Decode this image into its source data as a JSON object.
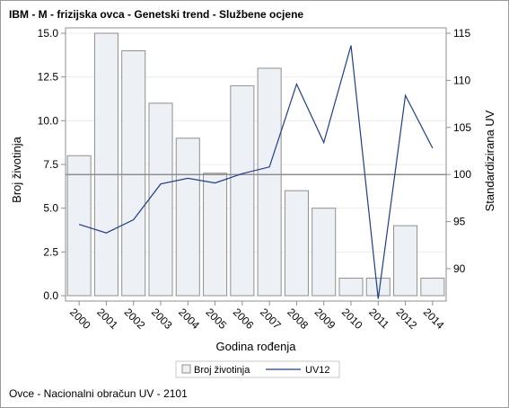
{
  "title": "IBM - M - frizijska ovca - Genetski trend - Službene ocjene",
  "footnote": "Ovce - Nacionalni obračun UV - 2101",
  "colors": {
    "bar_fill": "#edf0f5",
    "bar_stroke": "#8f8f8f",
    "line": "#1f3d8c",
    "reference_line": "#8f8f8f",
    "axis": "#8f8f8f",
    "grid": "#ececec"
  },
  "chart_data": {
    "type": "bar",
    "xlabel": "Godina rođenja",
    "ylabel": "Broj životinja",
    "y2label": "Standardizirana UV",
    "categories": [
      "2000",
      "2001",
      "2002",
      "2003",
      "2004",
      "2005",
      "2006",
      "2007",
      "2008",
      "2009",
      "2010",
      "2011",
      "2012",
      "2014"
    ],
    "ylim": [
      0,
      15
    ],
    "yticks": [
      "0.0",
      "2.5",
      "5.0",
      "7.5",
      "10.0",
      "12.5",
      "15.0"
    ],
    "y2lim": [
      87,
      115
    ],
    "y2ticks": [
      "90",
      "95",
      "100",
      "105",
      "110",
      "115"
    ],
    "reference_line_y2": 100,
    "grid": true,
    "legend_position": "bottom",
    "series": [
      {
        "name": "Broj životinja",
        "type": "bar",
        "axis": "left",
        "values": [
          8,
          15,
          14,
          11,
          9,
          7,
          12,
          13,
          6,
          5,
          1,
          1,
          4,
          1
        ]
      },
      {
        "name": "UV12",
        "type": "line",
        "axis": "right",
        "values": [
          94.7,
          93.8,
          95.2,
          99.0,
          99.6,
          99.1,
          100.1,
          100.8,
          109.6,
          103.4,
          113.7,
          86.8,
          108.4,
          102.8
        ]
      }
    ]
  }
}
